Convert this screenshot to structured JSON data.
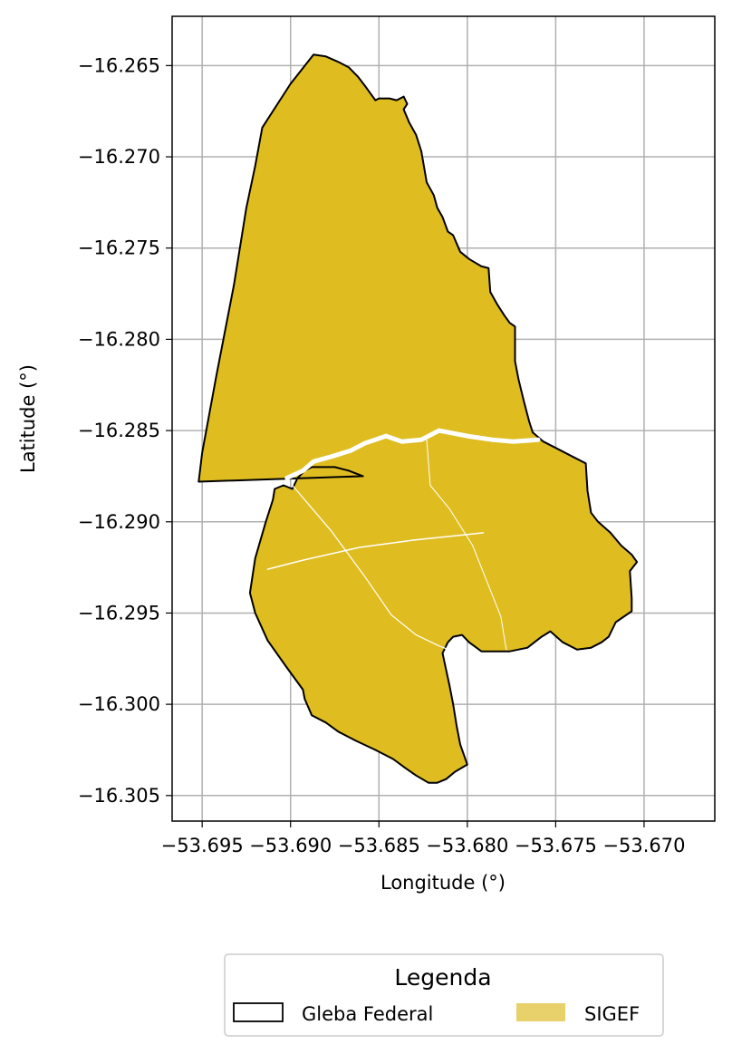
{
  "chart_data": {
    "type": "map",
    "xlabel": "Longitude (°)",
    "ylabel": "Latitude (°)",
    "xlim": [
      -53.6967,
      -53.666
    ],
    "ylim": [
      -16.3064,
      -16.2623
    ],
    "xticks": [
      -53.695,
      -53.69,
      -53.685,
      -53.68,
      -53.675,
      -53.67
    ],
    "xtick_labels": [
      "−53.695",
      "−53.690",
      "−53.685",
      "−53.680",
      "−53.675",
      "−53.670"
    ],
    "yticks": [
      -16.265,
      -16.27,
      -16.275,
      -16.28,
      -16.285,
      -16.29,
      -16.295,
      -16.3,
      -16.305
    ],
    "ytick_labels": [
      "−16.265",
      "−16.270",
      "−16.275",
      "−16.280",
      "−16.285",
      "−16.290",
      "−16.295",
      "−16.300",
      "−16.305"
    ],
    "grid": true,
    "legend": {
      "title": "Legenda",
      "placement": "bottom-center",
      "entries": [
        {
          "label": "Gleba Federal",
          "style": "outline"
        },
        {
          "label": "SIGEF",
          "style": "fill"
        }
      ]
    },
    "colors": {
      "sigef_fill": "#dfbd20",
      "legend_fill": "#e8d06a",
      "outline": "#000000",
      "grid": "#b0b0b0",
      "divider": "#ffffff"
    },
    "gleba_federal": [
      [
        -53.6952,
        -16.2878
      ],
      [
        -53.695,
        -16.2875
      ],
      [
        -53.6945,
        -16.2871
      ],
      [
        -53.6937,
        -16.287
      ],
      [
        -53.6929,
        -16.287
      ],
      [
        -53.6923,
        -16.2874
      ],
      [
        -53.6922,
        -16.288
      ],
      [
        -53.6918,
        -16.2877
      ],
      [
        -53.691,
        -16.2874
      ],
      [
        -53.6912,
        -16.281
      ],
      [
        -53.6912,
        -16.275
      ],
      [
        -53.6906,
        -16.2683
      ],
      [
        -53.6889,
        -16.2652
      ],
      [
        -53.6882,
        -16.2644
      ],
      [
        -53.6877,
        -16.2645
      ],
      [
        -53.6875,
        -16.2647
      ],
      [
        -53.6869,
        -16.2648
      ],
      [
        -53.6863,
        -16.2651
      ],
      [
        -53.6858,
        -16.2656
      ],
      [
        -53.6855,
        -16.2659
      ],
      [
        -53.6852,
        -16.2662
      ],
      [
        -53.6849,
        -16.2666
      ],
      [
        -53.6843,
        -16.2668
      ],
      [
        -53.6839,
        -16.2668
      ],
      [
        -53.6834,
        -16.2668
      ],
      [
        -53.6831,
        -16.2674
      ],
      [
        -53.6836,
        -16.2676
      ],
      [
        -53.6838,
        -16.2688
      ],
      [
        -53.6835,
        -16.2695
      ],
      [
        -53.6833,
        -16.27
      ],
      [
        -53.683,
        -16.2712
      ],
      [
        -53.6825,
        -16.2718
      ],
      [
        -53.6821,
        -16.2725
      ],
      [
        -53.6816,
        -16.2733
      ],
      [
        -53.6813,
        -16.2737
      ],
      [
        -53.6808,
        -16.2745
      ],
      [
        -53.6802,
        -16.275
      ],
      [
        -53.6797,
        -16.2757
      ],
      [
        -53.6792,
        -16.276
      ],
      [
        -53.6789,
        -16.2761
      ],
      [
        -53.6788,
        -16.2771
      ],
      [
        -53.6783,
        -16.278
      ],
      [
        -53.6777,
        -16.2784
      ],
      [
        -53.677,
        -16.279
      ],
      [
        -53.6765,
        -16.2793
      ],
      [
        -53.6764,
        -16.281
      ],
      [
        -53.6764,
        -16.2825
      ],
      [
        -53.6757,
        -16.284
      ],
      [
        -53.6751,
        -16.285
      ],
      [
        -53.6746,
        -16.2854
      ],
      [
        -53.6738,
        -16.2861
      ],
      [
        -53.6727,
        -16.2866
      ],
      [
        -53.6719,
        -16.2869
      ],
      [
        -53.6709,
        -16.2882
      ],
      [
        -53.6701,
        -16.2893
      ],
      [
        -53.6688,
        -16.2903
      ],
      [
        -53.6675,
        -16.2911
      ],
      [
        -53.6678,
        -16.2922
      ],
      [
        -53.6668,
        -16.2925
      ],
      [
        -53.6663,
        -16.2948
      ],
      [
        -53.6664,
        -16.2958
      ],
      [
        -53.6672,
        -16.2964
      ],
      [
        -53.6683,
        -16.2966
      ],
      [
        -53.6699,
        -16.297
      ],
      [
        -53.6708,
        -16.2973
      ],
      [
        -53.6718,
        -16.2967
      ],
      [
        -53.673,
        -16.2963
      ],
      [
        -53.6738,
        -16.2972
      ],
      [
        -53.6752,
        -16.2972
      ],
      [
        -53.6768,
        -16.2964
      ],
      [
        -53.6778,
        -16.2963
      ],
      [
        -53.6796,
        -16.296
      ],
      [
        -53.6803,
        -16.296
      ],
      [
        -53.6806,
        -16.2966
      ],
      [
        -53.6808,
        -16.2975
      ],
      [
        -53.6811,
        -16.2988
      ],
      [
        -53.6812,
        -16.3001
      ],
      [
        -53.6815,
        -16.3021
      ],
      [
        -53.6817,
        -16.3036
      ],
      [
        -53.6821,
        -16.3041
      ],
      [
        -53.6828,
        -16.3043
      ],
      [
        -53.6832,
        -16.304
      ],
      [
        -53.6837,
        -16.3035
      ],
      [
        -53.6843,
        -16.3028
      ],
      [
        -53.6848,
        -16.302
      ],
      [
        -53.6857,
        -16.3012
      ],
      [
        -53.6863,
        -16.3009
      ],
      [
        -53.687,
        -16.3006
      ],
      [
        -53.6873,
        -16.3
      ],
      [
        -53.6874,
        -16.2993
      ],
      [
        -53.689,
        -16.2976
      ],
      [
        -53.6903,
        -16.296
      ],
      [
        -53.691,
        -16.295
      ],
      [
        -53.6914,
        -16.2941
      ],
      [
        -53.6908,
        -16.29
      ],
      [
        -53.6902,
        -16.2877
      ],
      [
        -53.6894,
        -16.2872
      ],
      [
        -53.6887,
        -16.2867
      ],
      [
        -53.6875,
        -16.2865
      ],
      [
        -53.6865,
        -16.2862
      ],
      [
        -53.6858,
        -16.2858
      ],
      [
        -53.6848,
        -16.2854
      ],
      [
        -53.6838,
        -16.2856
      ],
      [
        -53.6825,
        -16.2856
      ],
      [
        -53.6817,
        -16.2851
      ],
      [
        -53.6801,
        -16.2853
      ],
      [
        -53.6786,
        -16.2856
      ],
      [
        -53.6775,
        -16.2857
      ],
      [
        -53.6759,
        -16.2855
      ],
      [
        -53.6746,
        -16.2854
      ]
    ],
    "gleba_outline": [
      [
        -53.6952,
        -16.2878
      ],
      [
        -53.695,
        -16.2862
      ],
      [
        -53.6942,
        -16.282
      ],
      [
        -53.6932,
        -16.277
      ],
      [
        -53.6925,
        -16.2728
      ],
      [
        -53.692,
        -16.2705
      ],
      [
        -53.6916,
        -16.2684
      ],
      [
        -53.69,
        -16.266
      ],
      [
        -53.6887,
        -16.2644
      ],
      [
        -53.688,
        -16.2645
      ],
      [
        -53.6873,
        -16.2648
      ],
      [
        -53.6867,
        -16.2651
      ],
      [
        -53.6862,
        -16.2656
      ],
      [
        -53.6858,
        -16.2661
      ],
      [
        -53.6855,
        -16.2665
      ],
      [
        -53.6852,
        -16.2669
      ],
      [
        -53.685,
        -16.2668
      ],
      [
        -53.6844,
        -16.2668
      ],
      [
        -53.684,
        -16.2669
      ],
      [
        -53.6836,
        -16.2667
      ],
      [
        -53.6834,
        -16.2671
      ],
      [
        -53.6836,
        -16.2674
      ],
      [
        -53.6833,
        -16.2681
      ],
      [
        -53.6829,
        -16.2688
      ],
      [
        -53.6826,
        -16.2697
      ],
      [
        -53.6823,
        -16.2714
      ],
      [
        -53.6819,
        -16.2721
      ],
      [
        -53.6817,
        -16.2728
      ],
      [
        -53.6814,
        -16.2733
      ],
      [
        -53.6811,
        -16.2741
      ],
      [
        -53.6808,
        -16.2743
      ],
      [
        -53.6804,
        -16.2752
      ],
      [
        -53.6799,
        -16.2756
      ],
      [
        -53.6792,
        -16.276
      ],
      [
        -53.6788,
        -16.2761
      ],
      [
        -53.6787,
        -16.2774
      ],
      [
        -53.6783,
        -16.2781
      ],
      [
        -53.6779,
        -16.2787
      ],
      [
        -53.6776,
        -16.2791
      ],
      [
        -53.6773,
        -16.2793
      ],
      [
        -53.6773,
        -16.2812
      ],
      [
        -53.6771,
        -16.2822
      ],
      [
        -53.6768,
        -16.2834
      ],
      [
        -53.6765,
        -16.2845
      ],
      [
        -53.6763,
        -16.2851
      ],
      [
        -53.6757,
        -16.2856
      ],
      [
        -53.6749,
        -16.286
      ],
      [
        -53.6739,
        -16.2865
      ],
      [
        -53.6733,
        -16.2868
      ],
      [
        -53.6732,
        -16.2883
      ],
      [
        -53.673,
        -16.2895
      ],
      [
        -53.6726,
        -16.29
      ],
      [
        -53.6719,
        -16.2906
      ],
      [
        -53.6713,
        -16.2913
      ],
      [
        -53.6707,
        -16.2918
      ],
      [
        -53.6704,
        -16.2922
      ],
      [
        -53.6708,
        -16.2927
      ],
      [
        -53.6707,
        -16.2942
      ],
      [
        -53.6707,
        -16.2949
      ],
      [
        -53.6716,
        -16.2955
      ],
      [
        -53.672,
        -16.2963
      ],
      [
        -53.6724,
        -16.2966
      ],
      [
        -53.673,
        -16.2969
      ],
      [
        -53.6738,
        -16.297
      ],
      [
        -53.6746,
        -16.2966
      ],
      [
        -53.6753,
        -16.296
      ],
      [
        -53.6758,
        -16.2963
      ],
      [
        -53.6766,
        -16.2969
      ],
      [
        -53.6776,
        -16.2971
      ],
      [
        -53.6784,
        -16.2971
      ],
      [
        -53.6792,
        -16.2971
      ],
      [
        -53.6799,
        -16.2966
      ],
      [
        -53.6803,
        -16.2962
      ],
      [
        -53.6808,
        -16.2963
      ],
      [
        -53.6811,
        -16.2966
      ],
      [
        -53.6814,
        -16.2972
      ],
      [
        -53.6812,
        -16.2981
      ],
      [
        -53.681,
        -16.299
      ],
      [
        -53.6808,
        -16.3
      ],
      [
        -53.6806,
        -16.3012
      ],
      [
        -53.6804,
        -16.3022
      ],
      [
        -53.68,
        -16.3033
      ],
      [
        -53.6807,
        -16.3037
      ],
      [
        -53.6812,
        -16.3041
      ],
      [
        -53.6817,
        -16.3043
      ],
      [
        -53.6822,
        -16.3043
      ],
      [
        -53.6829,
        -16.3039
      ],
      [
        -53.6835,
        -16.3035
      ],
      [
        -53.6842,
        -16.303
      ],
      [
        -53.6852,
        -16.3025
      ],
      [
        -53.6863,
        -16.302
      ],
      [
        -53.6873,
        -16.3015
      ],
      [
        -53.688,
        -16.301
      ],
      [
        -53.6888,
        -16.3006
      ],
      [
        -53.6892,
        -16.2997
      ],
      [
        -53.6893,
        -16.2992
      ],
      [
        -53.6902,
        -16.298
      ],
      [
        -53.6913,
        -16.2965
      ],
      [
        -53.692,
        -16.295
      ],
      [
        -53.6923,
        -16.2939
      ],
      [
        -53.692,
        -16.292
      ],
      [
        -53.6914,
        -16.29
      ],
      [
        -53.691,
        -16.2888
      ],
      [
        -53.6909,
        -16.2882
      ],
      [
        -53.6904,
        -16.288
      ],
      [
        -53.6899,
        -16.2882
      ],
      [
        -53.6896,
        -16.2876
      ],
      [
        -53.6892,
        -16.2872
      ],
      [
        -53.6888,
        -16.287
      ],
      [
        -53.6882,
        -16.287
      ],
      [
        -53.6875,
        -16.287
      ],
      [
        -53.6867,
        -16.2872
      ],
      [
        -53.6859,
        -16.2875
      ],
      [
        -53.6952,
        -16.2878
      ]
    ]
  }
}
